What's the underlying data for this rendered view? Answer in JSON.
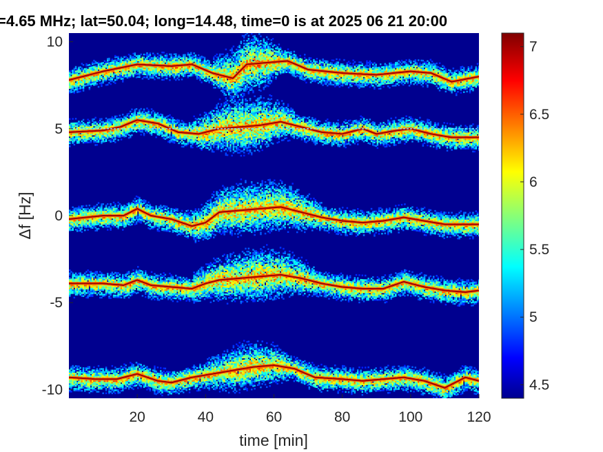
{
  "chart_data": {
    "type": "heatmap",
    "title": "=4.65 MHz;  lat=50.04; long=14.48, time=0 is at 2025 06 21 20:00",
    "xlabel": "time [min]",
    "ylabel": "Δf [Hz]",
    "xlim": [
      0,
      120
    ],
    "ylim": [
      -10.5,
      10.5
    ],
    "xticks": [
      20,
      40,
      60,
      80,
      100,
      120
    ],
    "yticks": [
      -10,
      -5,
      0,
      5,
      10
    ],
    "colorbar": {
      "range": [
        4.4,
        7.1
      ],
      "ticks": [
        4.5,
        5,
        5.5,
        6,
        6.5,
        7
      ],
      "colormap": "jet"
    },
    "background_value": 4.45,
    "carrier_line": {
      "y": 5.0,
      "color": "#7fe0ff"
    },
    "traces": [
      {
        "x": [
          0,
          10,
          20,
          30,
          36,
          42,
          48,
          52,
          58,
          64,
          70,
          80,
          90,
          100,
          106,
          112,
          120
        ],
        "y": [
          7.8,
          8.3,
          8.7,
          8.6,
          8.7,
          8.2,
          7.9,
          8.7,
          8.8,
          8.9,
          8.4,
          8.2,
          8.1,
          8.3,
          8.2,
          7.7,
          8.0
        ]
      },
      {
        "x": [
          0,
          10,
          15,
          20,
          26,
          32,
          38,
          44,
          50,
          56,
          62,
          68,
          74,
          80,
          86,
          90,
          96,
          100,
          106,
          112,
          120
        ],
        "y": [
          4.8,
          4.9,
          5.1,
          5.5,
          5.3,
          4.8,
          4.7,
          5.0,
          5.1,
          5.2,
          5.4,
          5.1,
          4.8,
          4.7,
          5.0,
          4.7,
          4.9,
          5.0,
          4.7,
          4.5,
          4.5
        ]
      },
      {
        "x": [
          0,
          10,
          16,
          20,
          24,
          30,
          36,
          40,
          44,
          50,
          56,
          62,
          68,
          74,
          80,
          86,
          92,
          98,
          104,
          110,
          116,
          120
        ],
        "y": [
          -0.2,
          0.0,
          0.0,
          0.4,
          0.0,
          -0.2,
          -0.6,
          -0.4,
          0.2,
          0.3,
          0.4,
          0.5,
          0.2,
          -0.1,
          -0.3,
          -0.4,
          -0.3,
          -0.1,
          -0.3,
          -0.5,
          -0.5,
          -0.5
        ]
      },
      {
        "x": [
          0,
          10,
          16,
          20,
          24,
          30,
          36,
          40,
          44,
          50,
          56,
          62,
          68,
          74,
          80,
          86,
          92,
          98,
          104,
          110,
          116,
          120
        ],
        "y": [
          -3.9,
          -3.9,
          -4.0,
          -3.7,
          -4.0,
          -4.1,
          -4.2,
          -3.9,
          -3.7,
          -3.6,
          -3.5,
          -3.4,
          -3.6,
          -3.9,
          -4.1,
          -4.2,
          -4.2,
          -3.8,
          -4.1,
          -4.3,
          -4.4,
          -4.3
        ]
      },
      {
        "x": [
          0,
          8,
          14,
          20,
          26,
          30,
          36,
          42,
          48,
          54,
          60,
          66,
          72,
          80,
          86,
          92,
          98,
          104,
          110,
          116,
          120
        ],
        "y": [
          -9.3,
          -9.4,
          -9.4,
          -9.1,
          -9.5,
          -9.6,
          -9.3,
          -9.1,
          -8.9,
          -8.7,
          -8.6,
          -8.8,
          -9.3,
          -9.4,
          -9.5,
          -9.4,
          -9.3,
          -9.5,
          -9.9,
          -9.3,
          -9.5
        ]
      }
    ],
    "noise_clouds": [
      {
        "trace": 0,
        "x0": 42,
        "x1": 62,
        "spread": 1.3
      },
      {
        "trace": 1,
        "x0": 36,
        "x1": 66,
        "spread": 1.2
      },
      {
        "trace": 2,
        "x0": 34,
        "x1": 74,
        "spread": 1.1
      },
      {
        "trace": 3,
        "x0": 36,
        "x1": 72,
        "spread": 1.1
      },
      {
        "trace": 4,
        "x0": 40,
        "x1": 64,
        "spread": 0.9
      }
    ]
  }
}
